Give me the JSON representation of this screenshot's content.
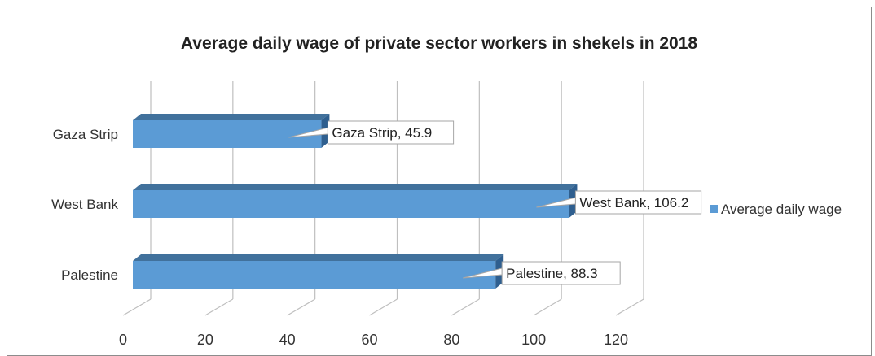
{
  "chart_data": {
    "type": "bar",
    "orientation": "horizontal",
    "title": "Average daily wage of private sector workers in shekels in 2018",
    "categories": [
      "Gaza Strip",
      "West Bank",
      "Palestine"
    ],
    "series": [
      {
        "name": "Average daily wage",
        "values": [
          45.9,
          106.2,
          88.3
        ]
      }
    ],
    "data_labels": [
      "Gaza Strip, 45.9",
      "West Bank, 106.2",
      "Palestine, 88.3"
    ],
    "xticks": [
      "0",
      "20",
      "40",
      "60",
      "80",
      "100",
      "120"
    ],
    "xlim": [
      0,
      120
    ],
    "grid": true,
    "legend": "right",
    "colors": {
      "bar": "#5b9bd5",
      "bar_top": "#41719c",
      "bar_side": "#2f5f8f",
      "grid": "#bfbfbf"
    }
  }
}
